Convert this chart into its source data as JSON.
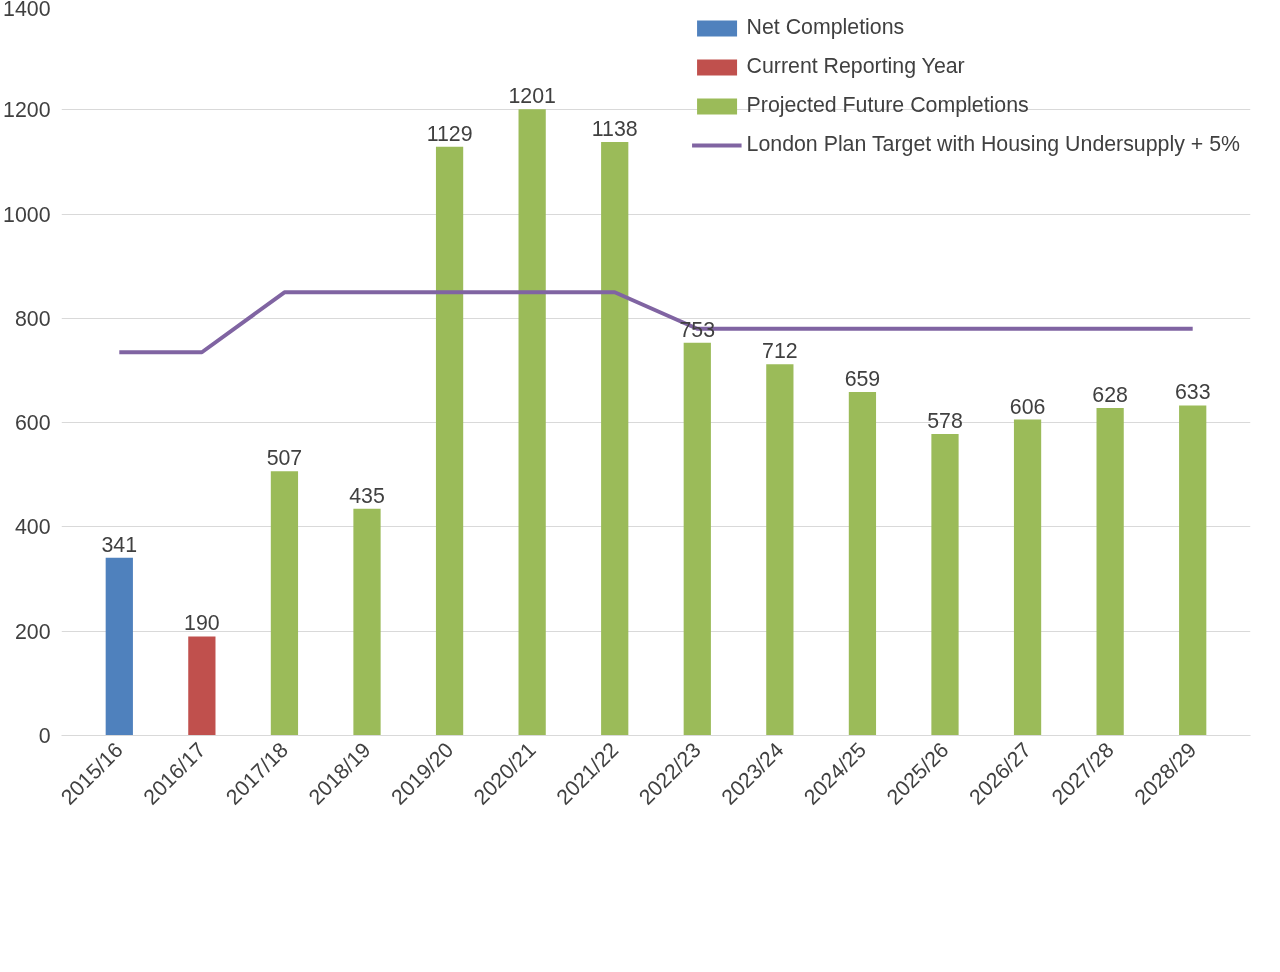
{
  "chart_data": {
    "type": "bar",
    "categories": [
      "2015/16",
      "2016/17",
      "2017/18",
      "2018/19",
      "2019/20",
      "2020/21",
      "2021/22",
      "2022/23",
      "2023/24",
      "2024/25",
      "2025/26",
      "2026/27",
      "2027/28",
      "2028/29"
    ],
    "series": [
      {
        "name": "Net Completions",
        "color": "#4f81bd",
        "values": [
          341,
          null,
          null,
          null,
          null,
          null,
          null,
          null,
          null,
          null,
          null,
          null,
          null,
          null
        ]
      },
      {
        "name": "Current Reporting Year",
        "color": "#c0504d",
        "values": [
          null,
          190,
          null,
          null,
          null,
          null,
          null,
          null,
          null,
          null,
          null,
          null,
          null,
          null
        ]
      },
      {
        "name": "Projected Future Completions",
        "color": "#9bbb59",
        "values": [
          null,
          null,
          507,
          435,
          1129,
          1201,
          1138,
          753,
          712,
          659,
          578,
          606,
          628,
          633
        ]
      },
      {
        "name": "London Plan Target with Housing Undersupply + 5%",
        "color": "#8064a2",
        "type": "line",
        "data_labels": false,
        "values": [
          735,
          735,
          850,
          850,
          850,
          850,
          850,
          780,
          780,
          780,
          780,
          780,
          780,
          780
        ]
      }
    ],
    "data_labels": true,
    "ylim": [
      0,
      1400
    ],
    "yticks": [
      0,
      200,
      400,
      600,
      800,
      1000,
      1200,
      1400
    ],
    "grid": "y",
    "legend": "top right"
  }
}
